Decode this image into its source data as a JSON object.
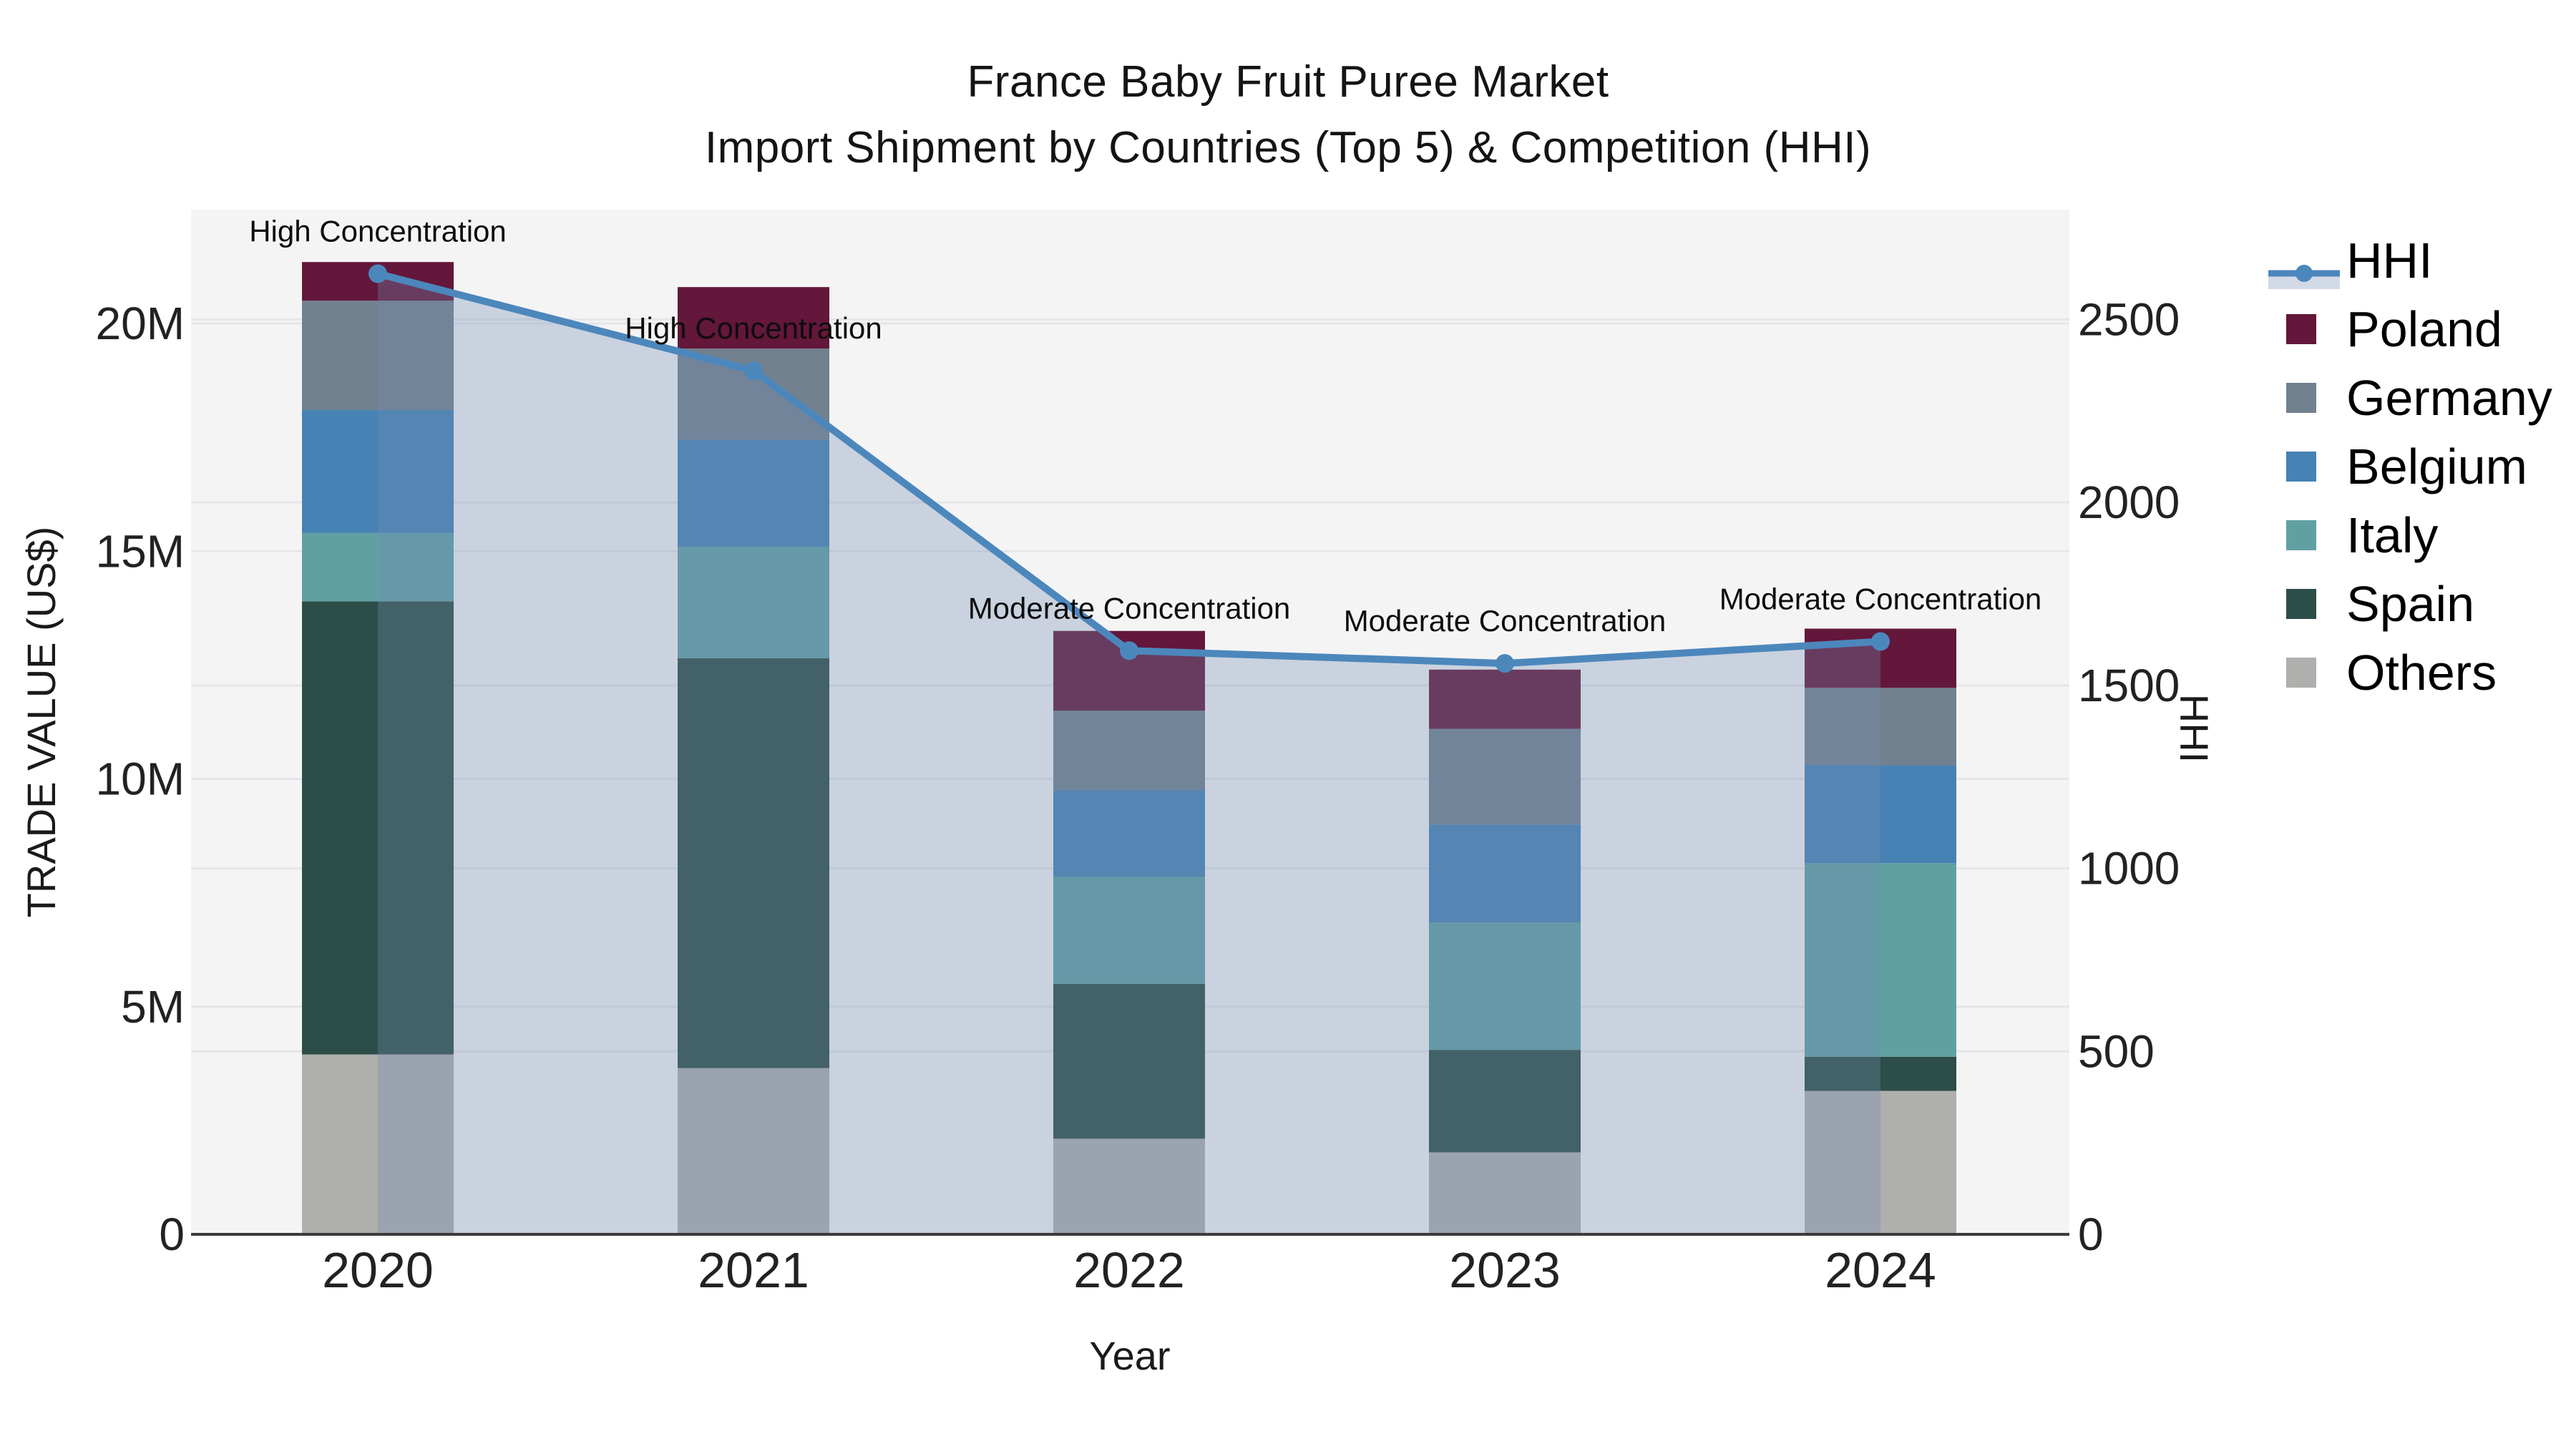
{
  "title": {
    "line1": "France Baby Fruit Puree Market",
    "line2": "Import Shipment by Countries (Top 5) & Competition (HHI)"
  },
  "axes": {
    "x": {
      "title": "Year",
      "ticks": [
        "2020",
        "2021",
        "2022",
        "2023",
        "2024"
      ]
    },
    "y_left": {
      "title": "TRADE VALUE (US$)",
      "unit": "million US$",
      "ticks": [
        {
          "label": "0",
          "value": 0
        },
        {
          "label": "5M",
          "value": 5
        },
        {
          "label": "10M",
          "value": 10
        },
        {
          "label": "15M",
          "value": 15
        },
        {
          "label": "20M",
          "value": 20
        }
      ],
      "range": [
        0,
        22.5
      ]
    },
    "y_right": {
      "title": "HHI",
      "ticks": [
        {
          "label": "0",
          "value": 0
        },
        {
          "label": "500",
          "value": 500
        },
        {
          "label": "1000",
          "value": 1000
        },
        {
          "label": "1500",
          "value": 1500
        },
        {
          "label": "2000",
          "value": 2000
        },
        {
          "label": "2500",
          "value": 2500
        }
      ],
      "range": [
        0,
        2800
      ]
    }
  },
  "legend": {
    "items": [
      {
        "label": "HHI",
        "type": "line",
        "color": "#4C87BC"
      },
      {
        "label": "Poland",
        "type": "swatch",
        "color": "#63173A"
      },
      {
        "label": "Germany",
        "type": "swatch",
        "color": "#72818F"
      },
      {
        "label": "Belgium",
        "type": "swatch",
        "color": "#4682B4"
      },
      {
        "label": "Italy",
        "type": "swatch",
        "color": "#61A0A2"
      },
      {
        "label": "Spain",
        "type": "swatch",
        "color": "#2D4D48"
      },
      {
        "label": "Others",
        "type": "swatch",
        "color": "#AFAFAD"
      }
    ]
  },
  "chart_data": {
    "type": "bar+line",
    "stacked": true,
    "categories": [
      "2020",
      "2021",
      "2022",
      "2023",
      "2024"
    ],
    "bar_value_unit": "million US$",
    "series": [
      {
        "name": "Others",
        "color": "#AFAFAD",
        "values": [
          3.95,
          3.65,
          2.1,
          1.8,
          3.15
        ]
      },
      {
        "name": "Spain",
        "color": "#2D4D48",
        "values": [
          9.95,
          9.0,
          3.4,
          2.25,
          0.75
        ]
      },
      {
        "name": "Italy",
        "color": "#61A0A2",
        "values": [
          1.5,
          2.45,
          2.35,
          2.8,
          4.25
        ]
      },
      {
        "name": "Belgium",
        "color": "#4682B4",
        "values": [
          2.7,
          2.35,
          1.9,
          2.15,
          2.15
        ]
      },
      {
        "name": "Germany",
        "color": "#72818F",
        "values": [
          2.4,
          2.0,
          1.75,
          2.1,
          1.7
        ]
      },
      {
        "name": "Poland",
        "color": "#63173A",
        "values": [
          0.85,
          1.35,
          1.75,
          1.3,
          1.3
        ]
      }
    ],
    "line_series": {
      "name": "HHI",
      "axis": "right",
      "values": [
        2625,
        2360,
        1595,
        1560,
        1620
      ],
      "color": "#4C87BC",
      "area_fill": "rgba(116,139,177,0.32)"
    },
    "annotations": [
      {
        "category": "2020",
        "text": "High Concentration"
      },
      {
        "category": "2021",
        "text": "High Concentration"
      },
      {
        "category": "2022",
        "text": "Moderate Concentration"
      },
      {
        "category": "2023",
        "text": "Moderate Concentration"
      },
      {
        "category": "2024",
        "text": "Moderate Concentration"
      }
    ],
    "ylim_left": [
      0,
      22.5
    ],
    "ylim_right": [
      0,
      2800
    ],
    "grid": true,
    "legend_position": "right"
  },
  "colors": {
    "plot_background": "#F4F4F5",
    "page_background": "#FFFFFF",
    "gridline": "#E4E6E9",
    "axis_line": "#3B3B3B",
    "tick_text": "#222222",
    "annotation_text": "#0D0D0D"
  }
}
